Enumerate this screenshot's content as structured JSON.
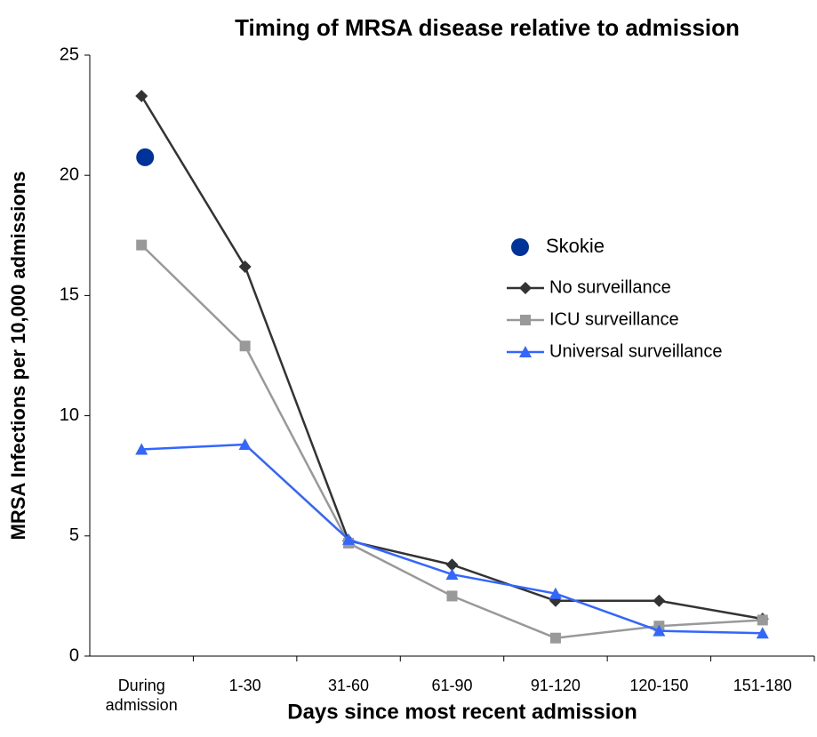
{
  "chart_data": {
    "type": "line",
    "title": "Timing of MRSA disease relative to admission",
    "x_label": "Days since most recent admission",
    "y_label": "MRSA Infections per 10,000 admissions",
    "categories": [
      "During admission",
      "1-30",
      "31-60",
      "61-90",
      "91-120",
      "120-150",
      "151-180"
    ],
    "ylim": [
      0,
      25
    ],
    "yticks": [
      0,
      5,
      10,
      15,
      20,
      25
    ],
    "grid": false,
    "legend": "right",
    "series": [
      {
        "name": "Skokie",
        "color": "#003399",
        "marker": "circle",
        "line": false,
        "values": [
          20.75,
          null,
          null,
          null,
          null,
          null,
          null
        ]
      },
      {
        "name": "No surveillance",
        "color": "#333333",
        "marker": "diamond",
        "line": true,
        "values": [
          23.3,
          16.2,
          4.8,
          3.8,
          2.3,
          2.3,
          1.55
        ]
      },
      {
        "name": "ICU surveillance",
        "color": "#999999",
        "marker": "square",
        "line": true,
        "values": [
          17.1,
          12.9,
          4.7,
          2.5,
          0.75,
          1.25,
          1.5
        ]
      },
      {
        "name": "Universal surveillance",
        "color": "#3366ff",
        "marker": "triangle",
        "line": true,
        "values": [
          8.6,
          8.8,
          4.85,
          3.4,
          2.6,
          1.05,
          0.95
        ]
      }
    ]
  }
}
